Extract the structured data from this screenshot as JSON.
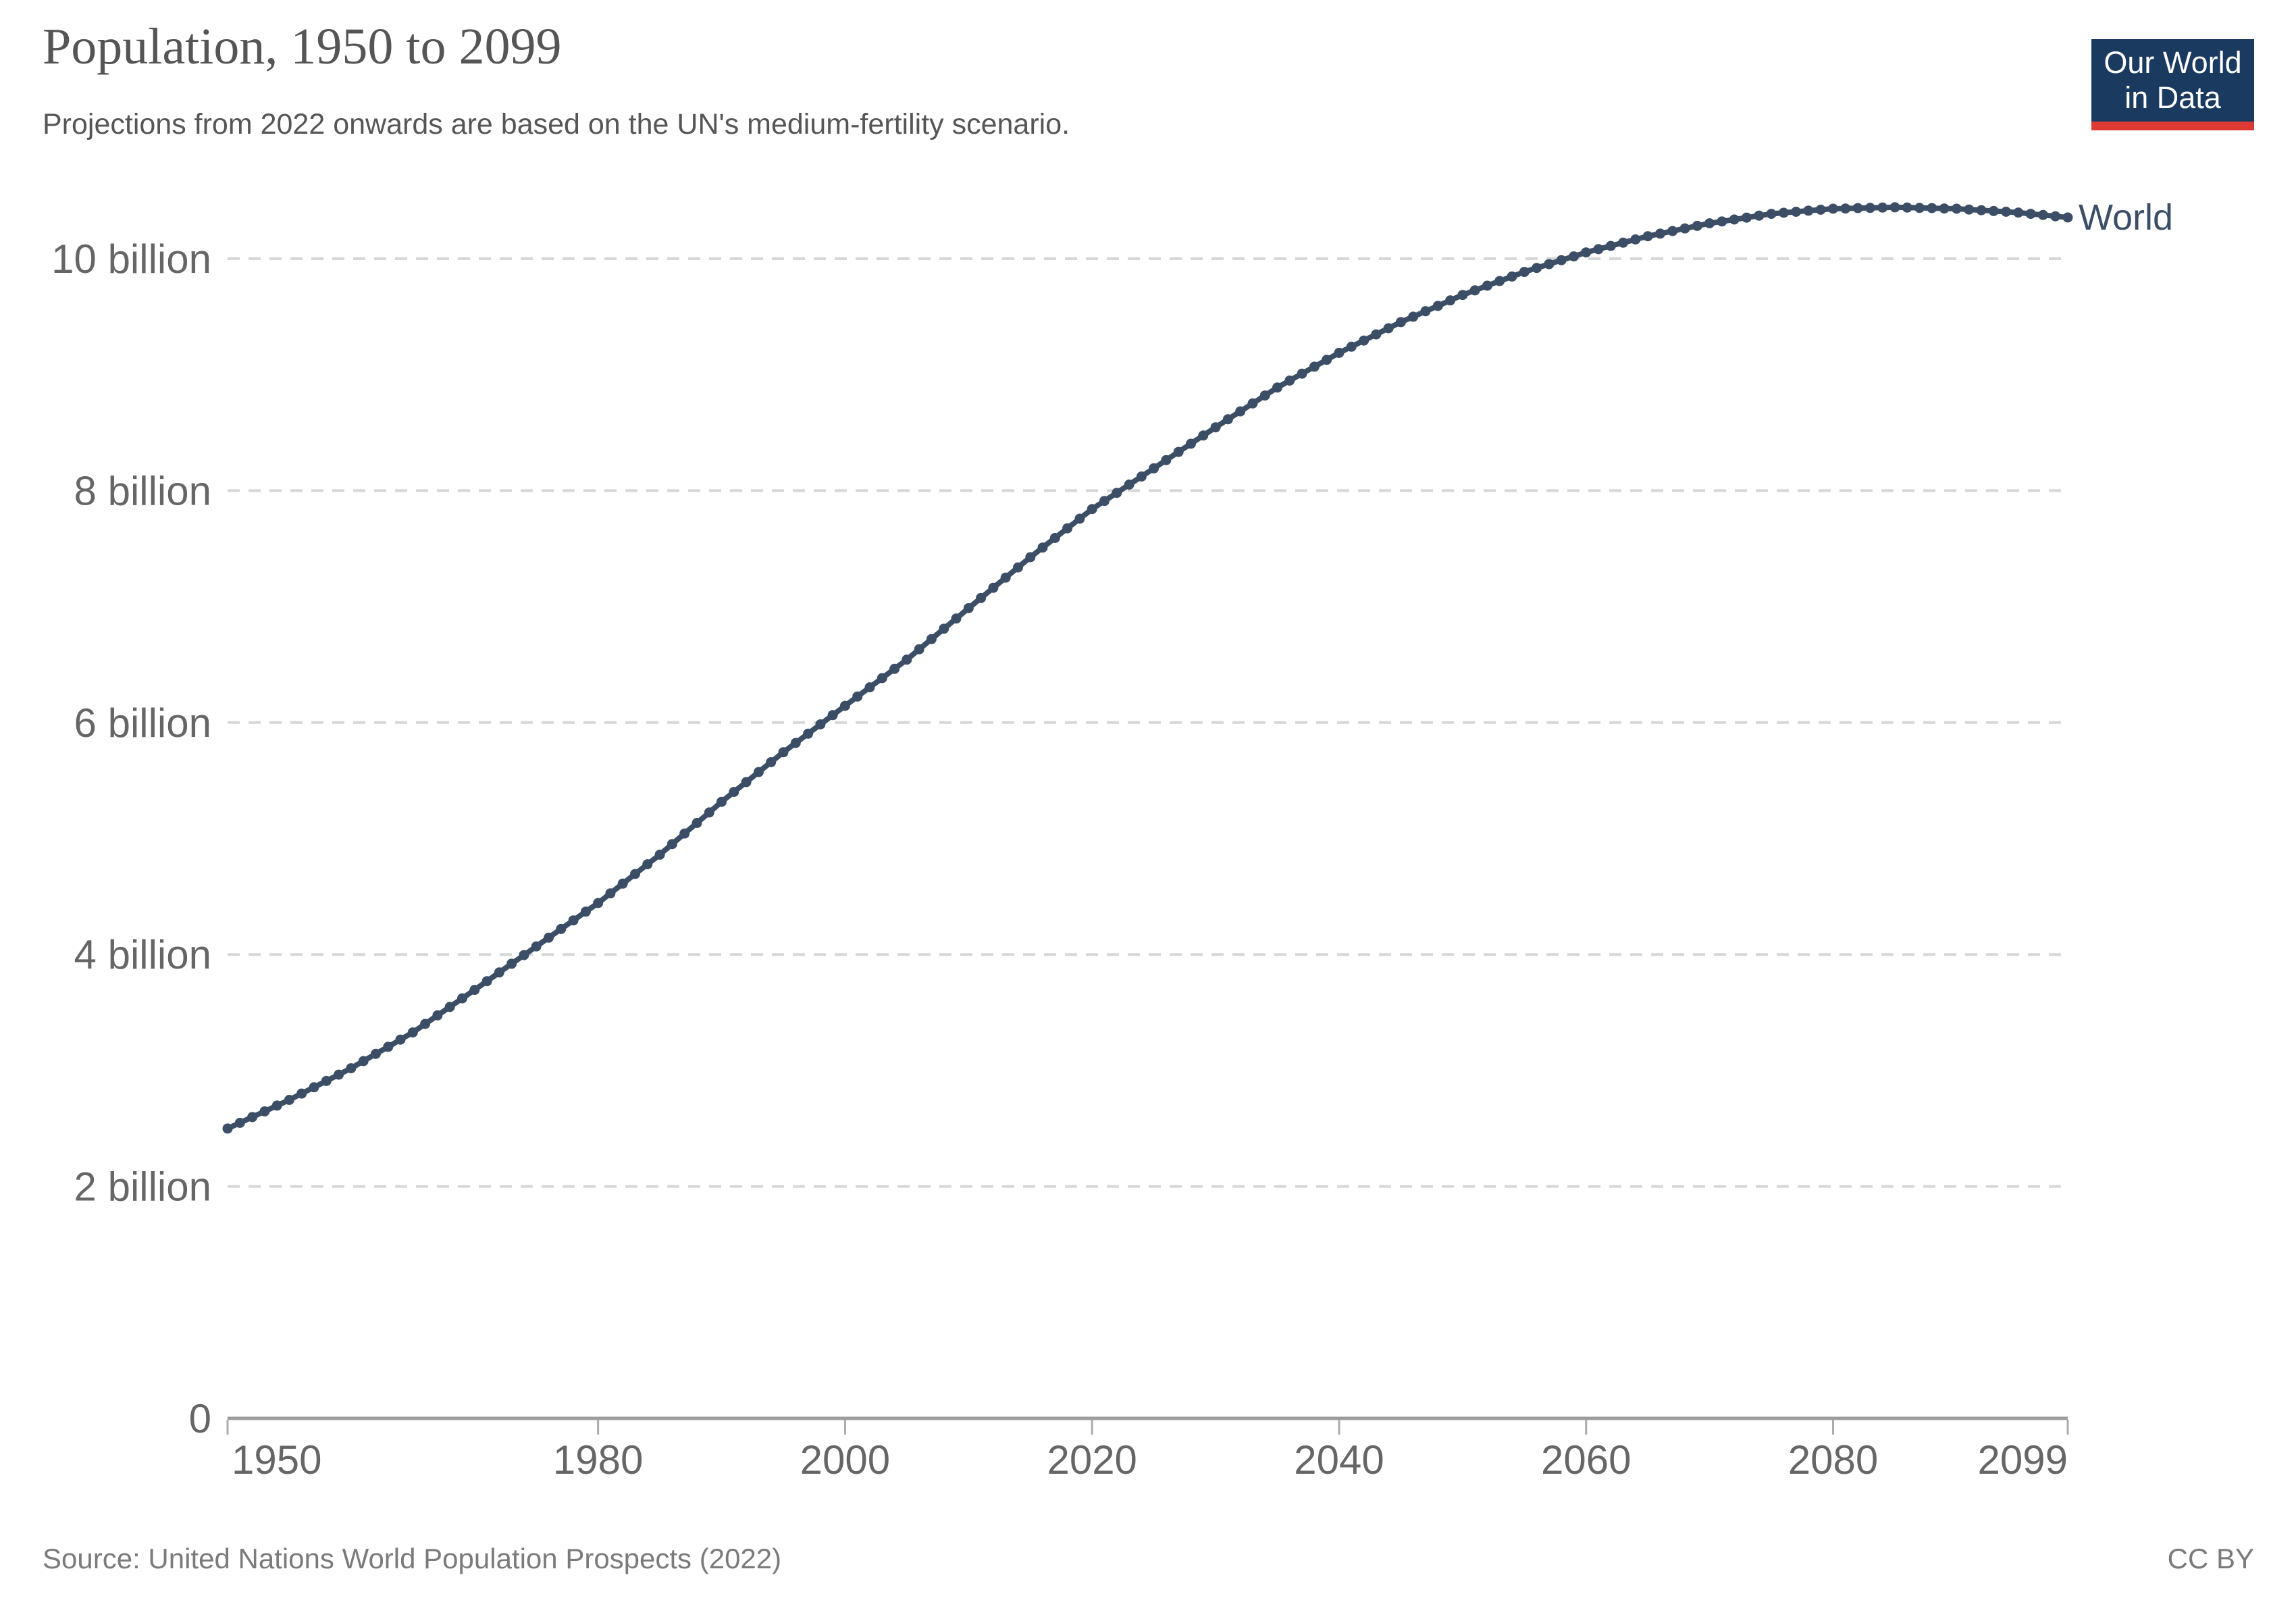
{
  "header": {
    "title": "Population, 1950 to 2099",
    "subtitle": "Projections from 2022 onwards are based on the UN's medium-fertility scenario.",
    "logo": {
      "line1": "Our World",
      "line2": "in Data",
      "bg_color": "#1b3a5f",
      "stripe_color": "#dc3a32"
    }
  },
  "footer": {
    "source": "Source: United Nations World Population Prospects (2022)",
    "license": "CC BY"
  },
  "chart_data": {
    "type": "line",
    "title": "Population, 1950 to 2099",
    "subtitle": "Projections from 2022 onwards are based on the UN's medium-fertility scenario.",
    "unit": "people",
    "value_scale": "billions",
    "x_min": 1950,
    "x_max": 2099,
    "x_step": 1,
    "x_ticks": [
      1950,
      1980,
      2000,
      2020,
      2040,
      2060,
      2080,
      2099
    ],
    "y_ticks": [
      {
        "value": 0,
        "label": "0"
      },
      {
        "value": 2,
        "label": "2 billion"
      },
      {
        "value": 4,
        "label": "4 billion"
      },
      {
        "value": 6,
        "label": "6 billion"
      },
      {
        "value": 8,
        "label": "8 billion"
      },
      {
        "value": 10,
        "label": "10 billion"
      }
    ],
    "ylim": [
      0,
      10.8
    ],
    "grid": "horizontal-dashed",
    "legend_position": "end-of-line",
    "series": [
      {
        "name": "World",
        "color": "#3C4E66",
        "marker": "circle",
        "values_billions": [
          2.499,
          2.548,
          2.598,
          2.647,
          2.697,
          2.746,
          2.801,
          2.855,
          2.91,
          2.964,
          3.019,
          3.081,
          3.143,
          3.204,
          3.266,
          3.328,
          3.401,
          3.475,
          3.548,
          3.622,
          3.695,
          3.77,
          3.845,
          3.92,
          3.995,
          4.07,
          4.145,
          4.22,
          4.294,
          4.369,
          4.444,
          4.527,
          4.611,
          4.694,
          4.778,
          4.861,
          4.952,
          5.043,
          5.134,
          5.225,
          5.316,
          5.402,
          5.487,
          5.573,
          5.658,
          5.744,
          5.824,
          5.904,
          5.984,
          6.064,
          6.144,
          6.224,
          6.304,
          6.383,
          6.463,
          6.543,
          6.632,
          6.72,
          6.809,
          6.897,
          6.986,
          7.074,
          7.162,
          7.25,
          7.338,
          7.426,
          7.509,
          7.592,
          7.675,
          7.758,
          7.841,
          7.911,
          7.981,
          8.052,
          8.122,
          8.192,
          8.263,
          8.334,
          8.404,
          8.475,
          8.546,
          8.615,
          8.683,
          8.752,
          8.82,
          8.889,
          8.949,
          9.009,
          9.069,
          9.128,
          9.188,
          9.241,
          9.294,
          9.347,
          9.4,
          9.453,
          9.5,
          9.547,
          9.593,
          9.64,
          9.687,
          9.727,
          9.767,
          9.807,
          9.846,
          9.886,
          9.92,
          9.953,
          9.987,
          10.02,
          10.054,
          10.082,
          10.11,
          10.138,
          10.166,
          10.194,
          10.216,
          10.238,
          10.261,
          10.283,
          10.305,
          10.321,
          10.338,
          10.354,
          10.371,
          10.387,
          10.396,
          10.405,
          10.414,
          10.422,
          10.431,
          10.433,
          10.436,
          10.438,
          10.441,
          10.443,
          10.441,
          10.438,
          10.436,
          10.433,
          10.431,
          10.424,
          10.418,
          10.411,
          10.405,
          10.398,
          10.387,
          10.377,
          10.366,
          10.355
        ]
      }
    ]
  }
}
